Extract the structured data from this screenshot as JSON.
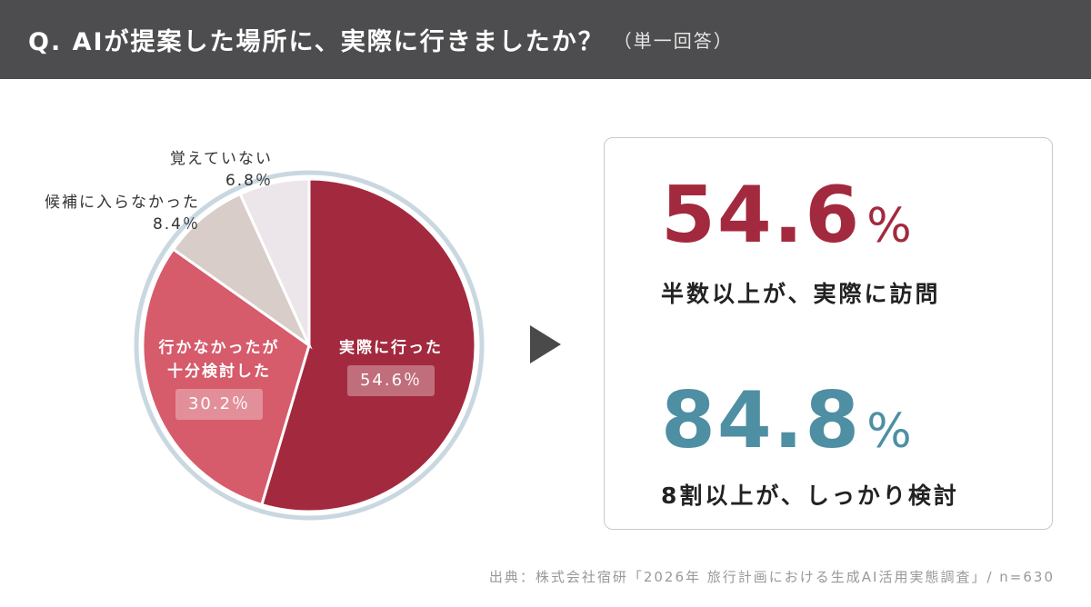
{
  "header": {
    "title": "Q. AIが提案した場所に、実際に行きましたか？",
    "subtitle": "（単一回答）",
    "bg_color": "#4d4d4f"
  },
  "chart_data": {
    "type": "pie",
    "title": "",
    "slices": [
      {
        "label": "実際に行った",
        "value": 54.6,
        "display": "54.6％",
        "color": "#a32a3e"
      },
      {
        "label_lines": [
          "行かなかったが",
          "十分検討した"
        ],
        "value": 30.2,
        "display": "30.2％",
        "color": "#d65b6b"
      },
      {
        "label": "候補に入らなかった",
        "value": 8.4,
        "display": "8.4％",
        "color": "#d9cdca"
      },
      {
        "label": "覚えていない",
        "value": 6.8,
        "display": "6.8％",
        "color": "#ece6ea"
      }
    ],
    "ring_color": "#c9d8e0",
    "start": "12 o'clock",
    "direction": "clockwise"
  },
  "summary": {
    "stat1": {
      "value": "54.6",
      "unit": "%",
      "caption": "半数以上が、実際に訪問",
      "color": "#a32a3e"
    },
    "stat2": {
      "value": "84.8",
      "unit": "%",
      "caption": "8割以上が、しっかり検討",
      "color": "#4e8fa3"
    }
  },
  "footer": {
    "source": "出典：株式会社宿研「2026年 旅行計画における生成AI活用実態調査」/ n=630"
  }
}
